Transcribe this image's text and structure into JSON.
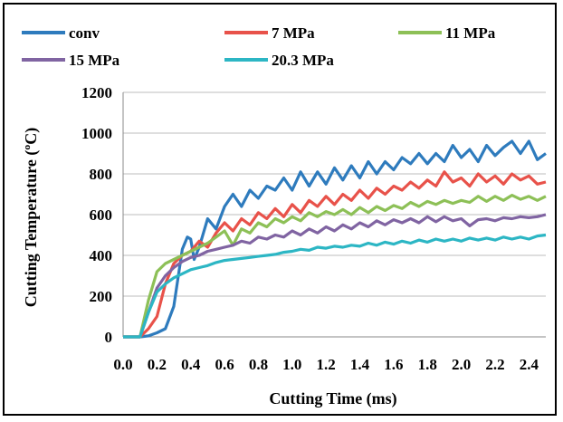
{
  "chart_data": {
    "type": "line",
    "title": "",
    "xlabel": "Cutting Time (ms)",
    "ylabel": "Cutting Temperature (ºC)",
    "xlim": [
      0,
      2.5
    ],
    "ylim": [
      0,
      1200
    ],
    "x_ticks": [
      "0.0",
      "0.2",
      "0.4",
      "0.6",
      "0.8",
      "1.0",
      "1.2",
      "1.4",
      "1.6",
      "1.8",
      "2.0",
      "2.2",
      "2.4"
    ],
    "y_ticks": [
      "0",
      "200",
      "400",
      "600",
      "800",
      "1000",
      "1200"
    ],
    "grid": "horizontal",
    "legend": "top",
    "series": [
      {
        "name": "conv",
        "color": "#2e7bbd",
        "points": [
          [
            0,
            0
          ],
          [
            0.1,
            0
          ],
          [
            0.15,
            5
          ],
          [
            0.2,
            20
          ],
          [
            0.25,
            40
          ],
          [
            0.3,
            150
          ],
          [
            0.35,
            430
          ],
          [
            0.38,
            490
          ],
          [
            0.4,
            480
          ],
          [
            0.42,
            380
          ],
          [
            0.45,
            440
          ],
          [
            0.5,
            580
          ],
          [
            0.55,
            530
          ],
          [
            0.6,
            640
          ],
          [
            0.65,
            700
          ],
          [
            0.7,
            640
          ],
          [
            0.75,
            720
          ],
          [
            0.8,
            680
          ],
          [
            0.85,
            740
          ],
          [
            0.9,
            720
          ],
          [
            0.95,
            780
          ],
          [
            1.0,
            720
          ],
          [
            1.05,
            810
          ],
          [
            1.1,
            740
          ],
          [
            1.15,
            810
          ],
          [
            1.2,
            750
          ],
          [
            1.25,
            830
          ],
          [
            1.3,
            770
          ],
          [
            1.35,
            840
          ],
          [
            1.4,
            780
          ],
          [
            1.45,
            860
          ],
          [
            1.5,
            800
          ],
          [
            1.55,
            860
          ],
          [
            1.6,
            820
          ],
          [
            1.65,
            880
          ],
          [
            1.7,
            850
          ],
          [
            1.75,
            900
          ],
          [
            1.8,
            850
          ],
          [
            1.85,
            900
          ],
          [
            1.9,
            860
          ],
          [
            1.95,
            940
          ],
          [
            2.0,
            880
          ],
          [
            2.05,
            920
          ],
          [
            2.1,
            860
          ],
          [
            2.15,
            940
          ],
          [
            2.2,
            890
          ],
          [
            2.25,
            930
          ],
          [
            2.3,
            960
          ],
          [
            2.35,
            900
          ],
          [
            2.4,
            960
          ],
          [
            2.45,
            870
          ],
          [
            2.5,
            900
          ]
        ]
      },
      {
        "name": "7 MPa",
        "color": "#e8524a",
        "points": [
          [
            0,
            0
          ],
          [
            0.1,
            0
          ],
          [
            0.15,
            40
          ],
          [
            0.2,
            100
          ],
          [
            0.25,
            260
          ],
          [
            0.3,
            360
          ],
          [
            0.35,
            400
          ],
          [
            0.4,
            420
          ],
          [
            0.45,
            470
          ],
          [
            0.5,
            440
          ],
          [
            0.55,
            510
          ],
          [
            0.6,
            560
          ],
          [
            0.65,
            520
          ],
          [
            0.7,
            580
          ],
          [
            0.75,
            550
          ],
          [
            0.8,
            610
          ],
          [
            0.85,
            580
          ],
          [
            0.9,
            630
          ],
          [
            0.95,
            590
          ],
          [
            1.0,
            650
          ],
          [
            1.05,
            610
          ],
          [
            1.1,
            670
          ],
          [
            1.15,
            640
          ],
          [
            1.2,
            690
          ],
          [
            1.25,
            650
          ],
          [
            1.3,
            700
          ],
          [
            1.35,
            670
          ],
          [
            1.4,
            720
          ],
          [
            1.45,
            680
          ],
          [
            1.5,
            730
          ],
          [
            1.55,
            700
          ],
          [
            1.6,
            740
          ],
          [
            1.65,
            720
          ],
          [
            1.7,
            760
          ],
          [
            1.75,
            730
          ],
          [
            1.8,
            770
          ],
          [
            1.85,
            740
          ],
          [
            1.9,
            810
          ],
          [
            1.95,
            760
          ],
          [
            2.0,
            780
          ],
          [
            2.05,
            740
          ],
          [
            2.1,
            800
          ],
          [
            2.15,
            760
          ],
          [
            2.2,
            790
          ],
          [
            2.25,
            750
          ],
          [
            2.3,
            800
          ],
          [
            2.35,
            770
          ],
          [
            2.4,
            790
          ],
          [
            2.45,
            750
          ],
          [
            2.5,
            760
          ]
        ]
      },
      {
        "name": "11 MPa",
        "color": "#8dc057",
        "points": [
          [
            0,
            0
          ],
          [
            0.1,
            0
          ],
          [
            0.15,
            180
          ],
          [
            0.2,
            320
          ],
          [
            0.25,
            360
          ],
          [
            0.3,
            380
          ],
          [
            0.35,
            400
          ],
          [
            0.4,
            420
          ],
          [
            0.45,
            440
          ],
          [
            0.5,
            460
          ],
          [
            0.55,
            490
          ],
          [
            0.6,
            520
          ],
          [
            0.65,
            450
          ],
          [
            0.7,
            530
          ],
          [
            0.75,
            510
          ],
          [
            0.8,
            560
          ],
          [
            0.85,
            540
          ],
          [
            0.9,
            580
          ],
          [
            0.95,
            560
          ],
          [
            1.0,
            590
          ],
          [
            1.05,
            570
          ],
          [
            1.1,
            610
          ],
          [
            1.15,
            590
          ],
          [
            1.2,
            615
          ],
          [
            1.25,
            600
          ],
          [
            1.3,
            625
          ],
          [
            1.35,
            600
          ],
          [
            1.4,
            635
          ],
          [
            1.45,
            610
          ],
          [
            1.5,
            640
          ],
          [
            1.55,
            620
          ],
          [
            1.6,
            645
          ],
          [
            1.65,
            630
          ],
          [
            1.7,
            660
          ],
          [
            1.75,
            640
          ],
          [
            1.8,
            665
          ],
          [
            1.85,
            650
          ],
          [
            1.9,
            670
          ],
          [
            1.95,
            655
          ],
          [
            2.0,
            670
          ],
          [
            2.05,
            660
          ],
          [
            2.1,
            690
          ],
          [
            2.15,
            665
          ],
          [
            2.2,
            690
          ],
          [
            2.25,
            670
          ],
          [
            2.3,
            695
          ],
          [
            2.35,
            675
          ],
          [
            2.4,
            690
          ],
          [
            2.45,
            670
          ],
          [
            2.5,
            690
          ]
        ]
      },
      {
        "name": "15 MPa",
        "color": "#8064a2",
        "points": [
          [
            0,
            0
          ],
          [
            0.1,
            0
          ],
          [
            0.15,
            120
          ],
          [
            0.2,
            240
          ],
          [
            0.25,
            300
          ],
          [
            0.3,
            340
          ],
          [
            0.35,
            370
          ],
          [
            0.4,
            390
          ],
          [
            0.45,
            400
          ],
          [
            0.5,
            420
          ],
          [
            0.55,
            430
          ],
          [
            0.6,
            440
          ],
          [
            0.65,
            450
          ],
          [
            0.7,
            470
          ],
          [
            0.75,
            460
          ],
          [
            0.8,
            490
          ],
          [
            0.85,
            480
          ],
          [
            0.9,
            500
          ],
          [
            0.95,
            490
          ],
          [
            1.0,
            520
          ],
          [
            1.05,
            500
          ],
          [
            1.1,
            530
          ],
          [
            1.15,
            510
          ],
          [
            1.2,
            540
          ],
          [
            1.25,
            520
          ],
          [
            1.3,
            550
          ],
          [
            1.35,
            530
          ],
          [
            1.4,
            560
          ],
          [
            1.45,
            540
          ],
          [
            1.5,
            570
          ],
          [
            1.55,
            550
          ],
          [
            1.6,
            575
          ],
          [
            1.65,
            560
          ],
          [
            1.7,
            580
          ],
          [
            1.75,
            560
          ],
          [
            1.8,
            590
          ],
          [
            1.85,
            565
          ],
          [
            1.9,
            590
          ],
          [
            1.95,
            570
          ],
          [
            2.0,
            580
          ],
          [
            2.05,
            545
          ],
          [
            2.1,
            575
          ],
          [
            2.15,
            580
          ],
          [
            2.2,
            570
          ],
          [
            2.25,
            585
          ],
          [
            2.3,
            580
          ],
          [
            2.35,
            590
          ],
          [
            2.4,
            585
          ],
          [
            2.45,
            590
          ],
          [
            2.5,
            600
          ]
        ]
      },
      {
        "name": "20.3 MPa",
        "color": "#2cb6c4",
        "points": [
          [
            0,
            0
          ],
          [
            0.1,
            0
          ],
          [
            0.15,
            120
          ],
          [
            0.2,
            220
          ],
          [
            0.25,
            260
          ],
          [
            0.3,
            290
          ],
          [
            0.35,
            310
          ],
          [
            0.4,
            330
          ],
          [
            0.45,
            340
          ],
          [
            0.5,
            350
          ],
          [
            0.55,
            365
          ],
          [
            0.6,
            375
          ],
          [
            0.65,
            380
          ],
          [
            0.7,
            385
          ],
          [
            0.75,
            390
          ],
          [
            0.8,
            395
          ],
          [
            0.85,
            400
          ],
          [
            0.9,
            405
          ],
          [
            0.95,
            415
          ],
          [
            1.0,
            420
          ],
          [
            1.05,
            430
          ],
          [
            1.1,
            425
          ],
          [
            1.15,
            440
          ],
          [
            1.2,
            435
          ],
          [
            1.25,
            445
          ],
          [
            1.3,
            440
          ],
          [
            1.35,
            450
          ],
          [
            1.4,
            445
          ],
          [
            1.45,
            460
          ],
          [
            1.5,
            450
          ],
          [
            1.55,
            465
          ],
          [
            1.6,
            455
          ],
          [
            1.65,
            470
          ],
          [
            1.7,
            460
          ],
          [
            1.75,
            475
          ],
          [
            1.8,
            465
          ],
          [
            1.85,
            480
          ],
          [
            1.9,
            470
          ],
          [
            1.95,
            480
          ],
          [
            2.0,
            470
          ],
          [
            2.05,
            485
          ],
          [
            2.1,
            475
          ],
          [
            2.15,
            485
          ],
          [
            2.2,
            475
          ],
          [
            2.25,
            490
          ],
          [
            2.3,
            480
          ],
          [
            2.35,
            490
          ],
          [
            2.4,
            480
          ],
          [
            2.45,
            495
          ],
          [
            2.5,
            500
          ]
        ]
      }
    ]
  }
}
